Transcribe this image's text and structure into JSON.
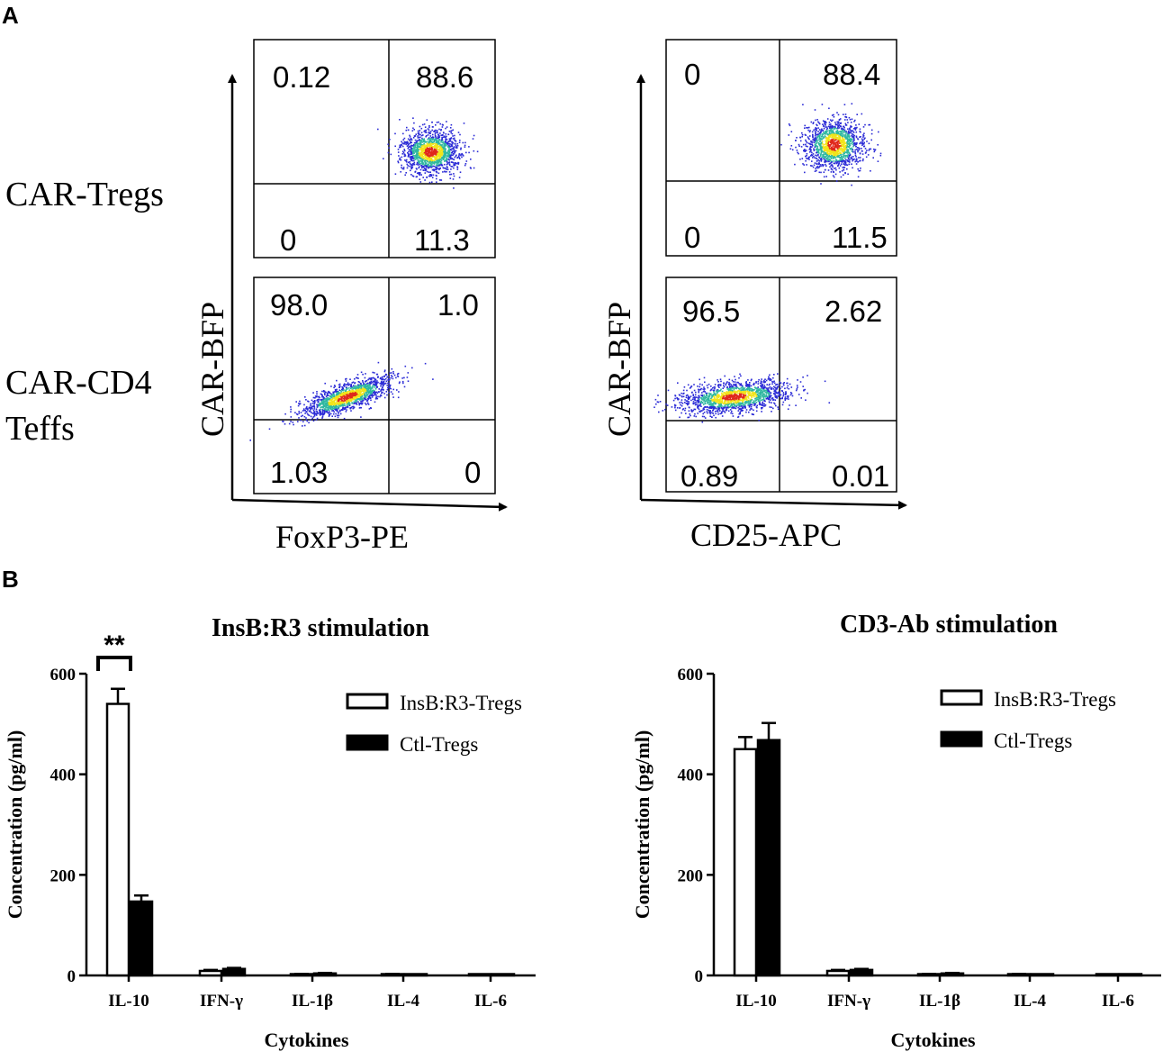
{
  "panel_labels": [
    "A",
    "B"
  ],
  "flow": {
    "row_labels": [
      "CAR-Tregs",
      "CAR-CD4",
      "Teffs"
    ],
    "y_axis_label": "CAR-BFP",
    "x_axis_labels": [
      "FoxP3-PE",
      "CD25-APC"
    ],
    "quadrants": {
      "foxp3_tregs": [
        "0.12",
        "88.6",
        "0",
        "11.3"
      ],
      "foxp3_teffs": [
        "98.0",
        "1.0",
        "1.03",
        "0"
      ],
      "cd25_tregs": [
        "0",
        "88.4",
        "0",
        "11.5"
      ],
      "cd25_teffs": [
        "96.5",
        "2.62",
        "0.89",
        "0.01"
      ]
    }
  },
  "colors": {
    "open_bar": "#ffffff",
    "filled_bar": "#000000",
    "axis": "#000000",
    "density_low": "#2b2bd6",
    "density_mid": "#2fb8a0",
    "density_high": "#f2e41a",
    "density_peak": "#e0281c"
  },
  "chart_data": [
    {
      "type": "bar",
      "title": "InsB:R3 stimulation",
      "xlabel": "Cytokines",
      "ylabel": "Concentration (pg/ml)",
      "ylim": [
        0,
        600
      ],
      "yticks": [
        "0",
        "200",
        "400",
        "600"
      ],
      "categories": [
        "IL-10",
        "IFN-γ",
        "IL-1β",
        "IL-4",
        "IL-6"
      ],
      "series": [
        {
          "name": "InsB:R3-Tregs",
          "style": "open",
          "values": [
            540,
            9,
            2,
            2,
            1
          ],
          "errors": [
            30,
            2,
            1,
            1,
            1
          ]
        },
        {
          "name": "Ctl-Tregs",
          "style": "filled",
          "values": [
            147,
            13,
            4,
            1,
            1
          ],
          "errors": [
            12,
            2,
            1,
            1,
            1
          ]
        }
      ],
      "annotation": "**"
    },
    {
      "type": "bar",
      "title": "CD3-Ab stimulation",
      "xlabel": "Cytokines",
      "ylabel": "Concentration (pg/ml)",
      "ylim": [
        0,
        600
      ],
      "yticks": [
        "0",
        "200",
        "400",
        "600"
      ],
      "categories": [
        "IL-10",
        "IFN-γ",
        "IL-1β",
        "IL-4",
        "IL-6"
      ],
      "series": [
        {
          "name": "InsB:R3-Tregs",
          "style": "open",
          "values": [
            450,
            9,
            2,
            2,
            1
          ],
          "errors": [
            24,
            2,
            1,
            1,
            1
          ]
        },
        {
          "name": "Ctl-Tregs",
          "style": "filled",
          "values": [
            468,
            11,
            4,
            1,
            1
          ],
          "errors": [
            34,
            2,
            1,
            1,
            1
          ]
        }
      ],
      "annotation": ""
    }
  ]
}
